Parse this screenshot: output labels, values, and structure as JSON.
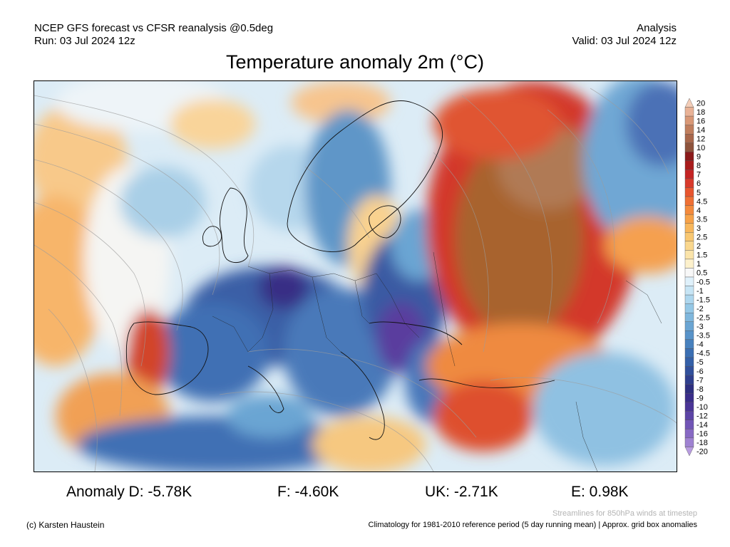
{
  "header": {
    "model_line": "NCEP GFS forecast vs CFSR reanalysis @0.5deg",
    "run_line": "Run: 03 Jul 2024 12z",
    "mode": "Analysis",
    "valid_line": "Valid: 03 Jul 2024 12z"
  },
  "title": "Temperature anomaly 2m (°C)",
  "legend": {
    "labels": [
      "20",
      "18",
      "16",
      "14",
      "12",
      "10",
      "9",
      "8",
      "7",
      "6",
      "5",
      "4.5",
      "4",
      "3.5",
      "3",
      "2.5",
      "2",
      "1.5",
      "1",
      "0.5",
      "-0.5",
      "-1",
      "-1.5",
      "-2",
      "-2.5",
      "-3",
      "-3.5",
      "-4",
      "-4.5",
      "-5",
      "-6",
      "-7",
      "-8",
      "-9",
      "-10",
      "-12",
      "-14",
      "-16",
      "-18",
      "-20"
    ],
    "colors": [
      "#f3cdb8",
      "#e9b296",
      "#d99876",
      "#c07e5d",
      "#a8674b",
      "#8e533c",
      "#8b1a1a",
      "#a81c1c",
      "#c42424",
      "#d83a2b",
      "#e8552e",
      "#ef7034",
      "#f48a3c",
      "#f7a248",
      "#f8b75c",
      "#f9c872",
      "#fad78d",
      "#fbe4aa",
      "#fdf1cc",
      "#f8f8f8",
      "#dff1fb",
      "#c7e5f5",
      "#aed7ee",
      "#95c8e6",
      "#7fb7dd",
      "#6aa5d3",
      "#5893c9",
      "#4881be",
      "#3b6fb3",
      "#3460a8",
      "#31509c",
      "#2f3f8e",
      "#2e2f80",
      "#3a2d8a",
      "#4a3597",
      "#5c44a6",
      "#7155b6",
      "#8769c4",
      "#9f82d2",
      "#b89ce0"
    ]
  },
  "anomalies": [
    {
      "label": "Anomaly D: -5.78K"
    },
    {
      "label": "F: -4.60K"
    },
    {
      "label": "UK: -2.71K"
    },
    {
      "label": "E: 0.98K"
    }
  ],
  "footer": {
    "streamline_note": "Streamlines for 850hPa winds at timestep",
    "copyright": "(c) Karsten Haustein",
    "climatology_note": "Climatology for 1981-2010 reference period (5 day running mean) | Approx. grid box anomalies"
  }
}
